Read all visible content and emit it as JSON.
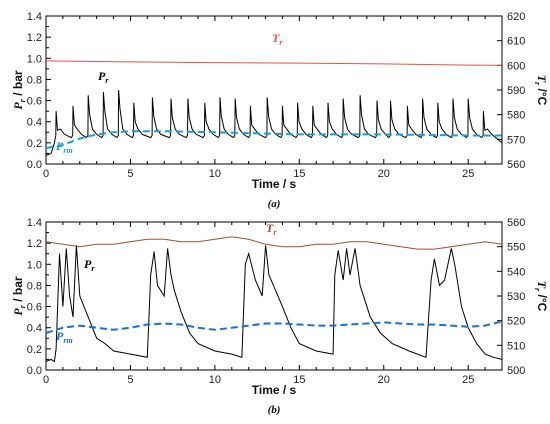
{
  "chart_data": [
    {
      "type": "line",
      "panel": "a",
      "caption": "(a)",
      "xlabel": "Time / s",
      "ylabel_left": {
        "main": "P",
        "sub": "r",
        "rest": " / bar"
      },
      "ylabel_right": {
        "main": "T",
        "sub": "r",
        "rest": " /°C"
      },
      "xlim": [
        0,
        27
      ],
      "ylim_left": [
        0,
        1.4
      ],
      "ylim_right": [
        560,
        620
      ],
      "xticks": [
        "0",
        "5",
        "10",
        "15",
        "20",
        "25"
      ],
      "yticks_left": [
        "0.0",
        "0.2",
        "0.4",
        "0.6",
        "0.8",
        "1.0",
        "1.2",
        "1.4"
      ],
      "yticks_right": [
        "560",
        "570",
        "580",
        "590",
        "600",
        "610",
        "620"
      ],
      "grid": false,
      "series": [
        {
          "name": "Pr",
          "label_main": "P",
          "label_sub": "r",
          "axis": "left",
          "color": "#000000",
          "style": "solid",
          "pulse_peaks_x": [
            0.6,
            1.6,
            2.5,
            3.4,
            4.3,
            5.2,
            6.3,
            7.4,
            8.4,
            9.4,
            10.3,
            11.2,
            12.1,
            13.1,
            14.0,
            14.9,
            15.8,
            16.7,
            17.6,
            18.6,
            19.6,
            20.4,
            21.4,
            22.3,
            23.2,
            24.1,
            25.0,
            25.9
          ],
          "pulse_peaks_y": [
            0.5,
            0.55,
            0.65,
            0.68,
            0.7,
            0.58,
            0.63,
            0.62,
            0.62,
            0.58,
            0.63,
            0.62,
            0.55,
            0.63,
            0.55,
            0.58,
            0.55,
            0.58,
            0.62,
            0.65,
            0.6,
            0.6,
            0.55,
            0.62,
            0.58,
            0.62,
            0.62,
            0.5
          ],
          "baseline_y": 0.25
        },
        {
          "name": "Prm",
          "label_main": "P",
          "label_sub": "rm",
          "axis": "left",
          "color": "#1a9fd4",
          "style": "dashed",
          "x": [
            0,
            1,
            2,
            3,
            4,
            5,
            7,
            10,
            15,
            20,
            25,
            27
          ],
          "y": [
            0.15,
            0.18,
            0.24,
            0.28,
            0.3,
            0.31,
            0.31,
            0.3,
            0.28,
            0.28,
            0.27,
            0.27
          ]
        },
        {
          "name": "Tr",
          "label_main": "T",
          "label_sub": "r",
          "axis": "right",
          "color": "#e8504a",
          "style": "solid",
          "x": [
            0,
            5,
            10,
            15,
            20,
            25,
            27
          ],
          "y": [
            601.8,
            601.4,
            601.1,
            600.9,
            600.6,
            600.1,
            600.0
          ]
        }
      ]
    },
    {
      "type": "line",
      "panel": "b",
      "caption": "(b)",
      "xlabel": "Time / s",
      "ylabel_left": {
        "main": "P",
        "sub": "r",
        "rest": " / bar"
      },
      "ylabel_right": {
        "main": "T",
        "sub": "r",
        "rest": " /°C"
      },
      "xlim": [
        0,
        27
      ],
      "ylim_left": [
        0,
        1.4
      ],
      "ylim_right": [
        500,
        560
      ],
      "xticks": [
        "0",
        "5",
        "10",
        "15",
        "20",
        "25"
      ],
      "yticks_left": [
        "0.0",
        "0.2",
        "0.4",
        "0.6",
        "0.8",
        "1.0",
        "1.2",
        "1.4"
      ],
      "yticks_right": [
        "500",
        "510",
        "520",
        "530",
        "540",
        "550",
        "560"
      ],
      "grid": false,
      "series": [
        {
          "name": "Pr",
          "label_main": "P",
          "label_sub": "r",
          "axis": "left",
          "color": "#000000",
          "style": "solid",
          "x": [
            0,
            0.3,
            0.5,
            0.6,
            0.8,
            1.0,
            1.2,
            1.4,
            1.6,
            1.8,
            2.0,
            2.5,
            3.0,
            3.5,
            4.0,
            5.0,
            6.0,
            6.2,
            6.4,
            6.6,
            7.0,
            7.2,
            7.4,
            7.6,
            8.0,
            8.5,
            9.0,
            10.0,
            11.0,
            11.6,
            11.8,
            12.0,
            12.4,
            12.8,
            13.0,
            13.2,
            13.6,
            14.0,
            14.5,
            15.0,
            16.0,
            17.0,
            17.1,
            17.3,
            17.6,
            17.8,
            18.0,
            18.3,
            18.6,
            18.9,
            19.2,
            19.8,
            20.5,
            21.5,
            22.5,
            22.8,
            23.0,
            23.3,
            23.6,
            24.0,
            24.2,
            24.6,
            25.0,
            25.5,
            26.0,
            26.5,
            27.0
          ],
          "y": [
            0.08,
            0.1,
            0.08,
            0.2,
            1.1,
            0.6,
            1.15,
            0.7,
            0.5,
            1.18,
            0.7,
            0.5,
            0.3,
            0.25,
            0.18,
            0.15,
            0.12,
            0.9,
            1.12,
            0.8,
            0.7,
            1.15,
            0.9,
            0.75,
            0.55,
            0.35,
            0.25,
            0.18,
            0.15,
            0.12,
            1.0,
            1.1,
            0.85,
            0.7,
            1.18,
            0.9,
            0.75,
            0.6,
            0.4,
            0.25,
            0.18,
            0.15,
            0.9,
            1.13,
            0.85,
            1.15,
            0.9,
            1.15,
            0.8,
            0.65,
            0.5,
            0.35,
            0.25,
            0.18,
            0.12,
            0.85,
            1.05,
            0.8,
            0.85,
            1.15,
            1.0,
            0.6,
            0.4,
            0.25,
            0.15,
            0.12,
            0.1
          ]
        },
        {
          "name": "Prm",
          "label_main": "P",
          "label_sub": "rm",
          "axis": "left",
          "color": "#1a6fd4",
          "style": "dashed",
          "x": [
            0,
            1,
            2,
            3,
            4,
            5,
            6,
            7,
            8,
            9,
            10,
            11,
            12,
            13,
            14,
            15,
            16,
            17,
            18,
            19,
            20,
            21,
            22,
            23,
            24,
            25,
            26,
            27
          ],
          "y": [
            0.35,
            0.4,
            0.42,
            0.4,
            0.38,
            0.4,
            0.43,
            0.44,
            0.43,
            0.4,
            0.38,
            0.4,
            0.42,
            0.44,
            0.44,
            0.43,
            0.42,
            0.42,
            0.43,
            0.44,
            0.45,
            0.44,
            0.43,
            0.43,
            0.42,
            0.41,
            0.42,
            0.46
          ]
        },
        {
          "name": "Tr",
          "label_main": "T",
          "label_sub": "r",
          "axis": "right",
          "color": "#a0522d",
          "style": "solid",
          "x": [
            0,
            1,
            2,
            3,
            4,
            5,
            6,
            7,
            8,
            9,
            10,
            11,
            12,
            13,
            14,
            15,
            16,
            17,
            18,
            19,
            20,
            21,
            22,
            23,
            24,
            25,
            26,
            27
          ],
          "y": [
            552,
            551,
            550,
            551,
            551,
            552,
            553,
            553,
            552,
            552,
            553,
            554,
            553,
            551,
            550,
            550,
            551,
            551,
            552,
            552,
            551,
            550,
            549,
            549,
            550,
            551,
            552,
            551
          ]
        }
      ]
    }
  ]
}
